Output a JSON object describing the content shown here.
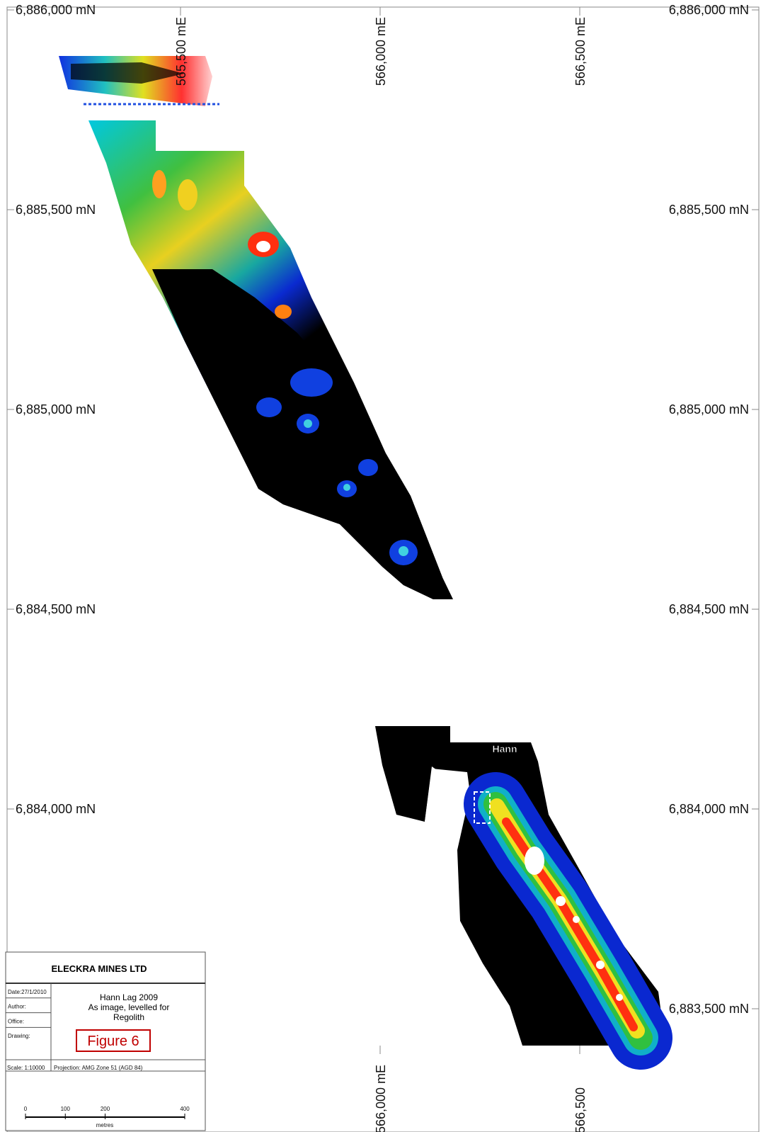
{
  "map_label": "Hann",
  "northings": [
    {
      "value": 6886000,
      "label": "6,886,000 mN"
    },
    {
      "value": 6885500,
      "label": "6,885,500 mN"
    },
    {
      "value": 6885000,
      "label": "6,885,000 mN"
    },
    {
      "value": 6884500,
      "label": "6,884,500 mN"
    },
    {
      "value": 6884000,
      "label": "6,884,000 mN"
    },
    {
      "value": 6883500,
      "label": "6,883,500 mN"
    }
  ],
  "eastings_top": [
    {
      "value": 565500,
      "label": "565,500 mE"
    },
    {
      "value": 566000,
      "label": "566,000 mE"
    },
    {
      "value": 566500,
      "label": "566,500 mE"
    }
  ],
  "eastings_bottom": [
    {
      "value": 566000,
      "label": "566,000 mE"
    },
    {
      "value": 566500,
      "label": "566,500"
    }
  ],
  "title_block": {
    "company": "ELECKRA MINES LTD",
    "title_lines": [
      "Hann Lag 2009",
      "As image, levelled for",
      "Regolith"
    ],
    "figure": "Figure 6",
    "fields": [
      "Date:27/1/2010",
      "Author:",
      "Office:",
      "Drawing:"
    ],
    "scale": "Scale: 1:10000",
    "projection": "Projection: AMG Zone 51 (AGD 84)",
    "scale_bar": {
      "ticks": [
        0,
        100,
        200,
        400
      ],
      "unit": "metres"
    }
  }
}
